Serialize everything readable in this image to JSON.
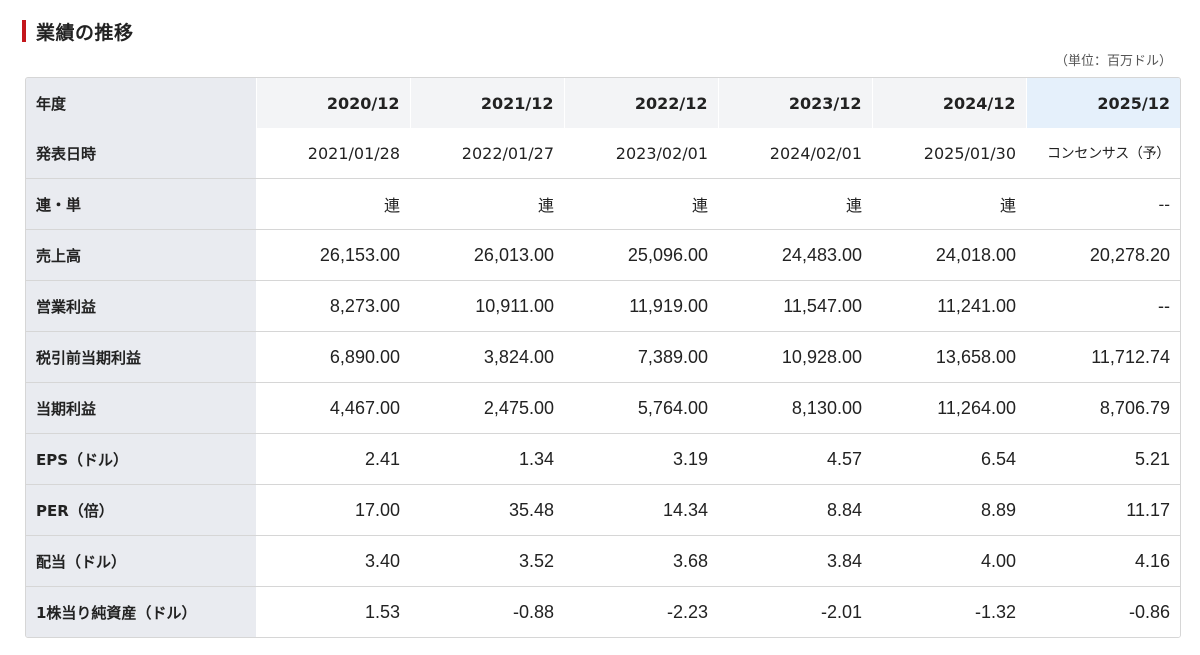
{
  "section": {
    "title": "業績の推移",
    "unit_note": "（単位：百万ドル）"
  },
  "table": {
    "header_label": "年度",
    "years": [
      "2020/12",
      "2021/12",
      "2022/12",
      "2023/12",
      "2024/12",
      "2025/12"
    ],
    "rows": [
      {
        "label": "発表日時",
        "values": [
          "2021/01/28",
          "2022/01/27",
          "2023/02/01",
          "2024/02/01",
          "2025/01/30",
          "コンセンサス（予）"
        ]
      },
      {
        "label": "連・単",
        "values": [
          "連",
          "連",
          "連",
          "連",
          "連",
          "--"
        ]
      },
      {
        "label": "売上高",
        "values": [
          "26,153.00",
          "26,013.00",
          "25,096.00",
          "24,483.00",
          "24,018.00",
          "20,278.20"
        ]
      },
      {
        "label": "営業利益",
        "values": [
          "8,273.00",
          "10,911.00",
          "11,919.00",
          "11,547.00",
          "11,241.00",
          "--"
        ]
      },
      {
        "label": "税引前当期利益",
        "values": [
          "6,890.00",
          "3,824.00",
          "7,389.00",
          "10,928.00",
          "13,658.00",
          "11,712.74"
        ]
      },
      {
        "label": "当期利益",
        "values": [
          "4,467.00",
          "2,475.00",
          "5,764.00",
          "8,130.00",
          "11,264.00",
          "8,706.79"
        ]
      },
      {
        "label": "EPS（ドル）",
        "values": [
          "2.41",
          "1.34",
          "3.19",
          "4.57",
          "6.54",
          "5.21"
        ]
      },
      {
        "label": "PER（倍）",
        "values": [
          "17.00",
          "35.48",
          "14.34",
          "8.84",
          "8.89",
          "11.17"
        ]
      },
      {
        "label": "配当（ドル）",
        "values": [
          "3.40",
          "3.52",
          "3.68",
          "3.84",
          "4.00",
          "4.16"
        ]
      },
      {
        "label": "1株当り純資産（ドル）",
        "values": [
          "1.53",
          "-0.88",
          "-2.23",
          "-2.01",
          "-1.32",
          "-0.86"
        ]
      }
    ]
  },
  "colors": {
    "accent": "#c4161c",
    "label_bg": "#e9ebf0",
    "header_bg": "#f3f4f6",
    "forecast_header_bg": "#e5f0fb",
    "border": "#d6d6d6"
  }
}
